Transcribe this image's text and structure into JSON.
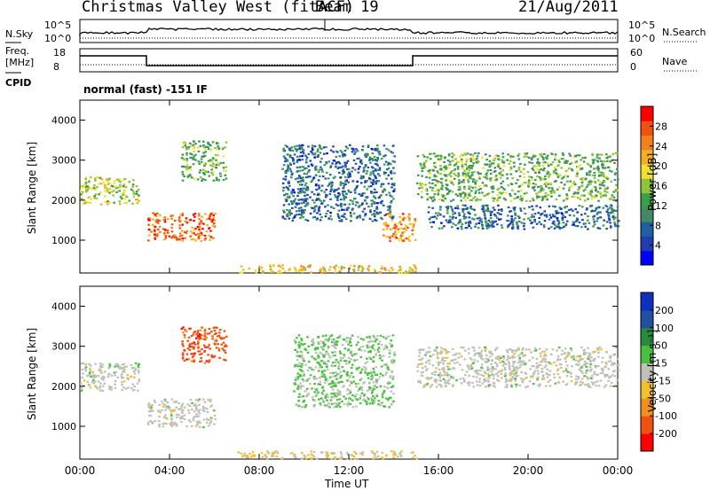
{
  "header": {
    "station": "Christmas Valley West (fitACF)",
    "beam": "Beam 19",
    "date": "21/Aug/2011"
  },
  "top_panels": {
    "nsky_label": "N.Sky",
    "nsky_ticks": [
      "10^5",
      "10^0"
    ],
    "nsearch_label": "N.Search",
    "nsearch_ticks": [
      "10^5",
      "10^0"
    ],
    "freq_label_1": "Freq.",
    "freq_label_2": "[MHz]",
    "freq_ticks": [
      "18",
      "8"
    ],
    "nave_label": "Nave",
    "nave_ticks": [
      "60",
      "0"
    ],
    "cpid_label": "CPID",
    "cpid_value": "normal (fast) -151 IF"
  },
  "chart_data": [
    {
      "type": "heatmap",
      "name": "power",
      "ylabel": "Slant Range [km]",
      "yticks": [
        "4000",
        "3000",
        "2000",
        "1000"
      ],
      "ylim": [
        180,
        4500
      ],
      "xlim": [
        0,
        24
      ],
      "colorbar_label": "Power [dB]",
      "colorbar_ticks": [
        "28",
        "24",
        "20",
        "16",
        "12",
        "8",
        "4"
      ],
      "colorbar_colors": [
        "#0000ff",
        "#1f3fb0",
        "#2060a0",
        "#408a68",
        "#3aa048",
        "#8ec43a",
        "#f0e030",
        "#f4b020",
        "#f08020",
        "#f05010",
        "#ff0000"
      ],
      "regions": [
        {
          "t0": 0.0,
          "t1": 2.6,
          "r0": 1900,
          "r1": 2600,
          "power": 18
        },
        {
          "t0": 3.0,
          "t1": 6.0,
          "r0": 1000,
          "r1": 1700,
          "power": 26
        },
        {
          "t0": 4.5,
          "t1": 6.5,
          "r0": 2500,
          "r1": 3500,
          "power": 14
        },
        {
          "t0": 9.0,
          "t1": 14.0,
          "r0": 1500,
          "r1": 3400,
          "power": 8
        },
        {
          "t0": 13.5,
          "t1": 15.0,
          "r0": 1000,
          "r1": 1700,
          "power": 24
        },
        {
          "t0": 15.0,
          "t1": 24.0,
          "r0": 2000,
          "r1": 3200,
          "power": 14
        },
        {
          "t0": 15.5,
          "t1": 24.0,
          "r0": 1300,
          "r1": 1900,
          "power": 8
        },
        {
          "t0": 7.0,
          "t1": 15.0,
          "r0": 200,
          "r1": 400,
          "power": 20
        }
      ]
    },
    {
      "type": "heatmap",
      "name": "velocity",
      "ylabel": "Slant Range [km]",
      "yticks": [
        "4000",
        "3000",
        "2000",
        "1000"
      ],
      "ylim": [
        180,
        4500
      ],
      "xlim": [
        0,
        24
      ],
      "xlabel": "Time UT",
      "xticks": [
        "00:00",
        "04:00",
        "08:00",
        "12:00",
        "16:00",
        "20:00",
        "00:00"
      ],
      "colorbar_label": "Velocity [m s⁻¹]",
      "colorbar_ticks": [
        "200",
        "100",
        "50",
        "15",
        "-15",
        "-50",
        "-100",
        "-200"
      ],
      "colorbar_colors": [
        "#1030c0",
        "#2050a0",
        "#2a8a40",
        "#48c040",
        "#c0c0b8",
        "#f0c030",
        "#f09020",
        "#f05010",
        "#ff0000"
      ],
      "regions": [
        {
          "t0": 0.0,
          "t1": 2.6,
          "r0": 1900,
          "r1": 2600,
          "velocity": 0
        },
        {
          "t0": 3.0,
          "t1": 6.0,
          "r0": 1000,
          "r1": 1700,
          "velocity": 0
        },
        {
          "t0": 4.5,
          "t1": 6.5,
          "r0": 2600,
          "r1": 3500,
          "velocity": -150
        },
        {
          "t0": 9.5,
          "t1": 14.0,
          "r0": 1500,
          "r1": 3300,
          "velocity": 30
        },
        {
          "t0": 15.0,
          "t1": 24.0,
          "r0": 2000,
          "r1": 3000,
          "velocity": 0
        },
        {
          "t0": 7.0,
          "t1": 15.0,
          "r0": 200,
          "r1": 400,
          "velocity": -30
        }
      ]
    }
  ]
}
